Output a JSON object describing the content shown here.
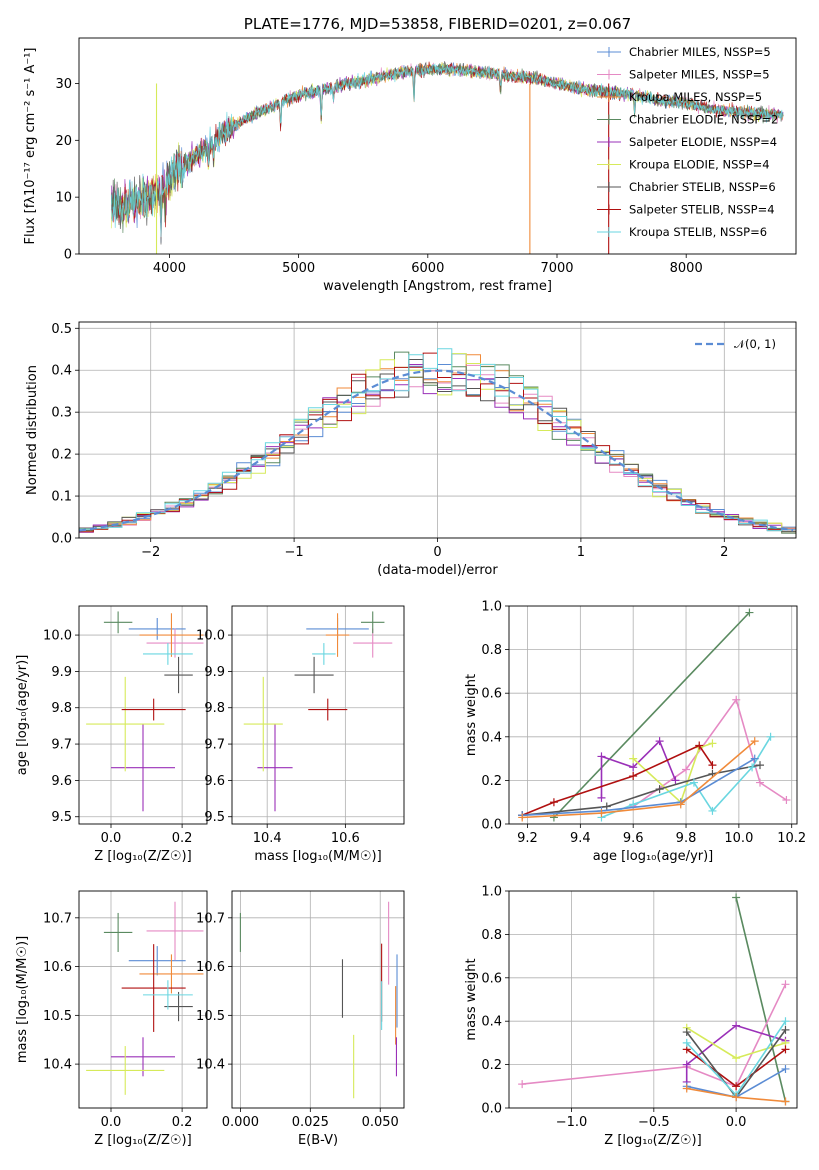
{
  "colors": {
    "Chabrier MILES": "#5b8cd4",
    "Salpeter MILES": "#e58ac4",
    "Kroupa MILES": "#f08a3a",
    "Chabrier ELODIE": "#5a8a60",
    "Salpeter ELODIE": "#9a30b8",
    "Kroupa ELODIE": "#d6ea5a",
    "Chabrier STELIB": "#555555",
    "Salpeter STELIB": "#b01010",
    "Kroupa STELIB": "#6ad6e0",
    "normal": "#5b8cd4",
    "grid": "#b0b0b0"
  },
  "chart_data": [
    {
      "id": "spectrum",
      "type": "line",
      "title": "PLATE=1776, MJD=53858, FIBERID=0201, z=0.067",
      "xlabel": "wavelength [Angstrom, rest frame]",
      "ylabel": "Flux [fλ10⁻¹⁷ erg cm⁻² s⁻¹ A⁻¹]",
      "xlim": [
        3300,
        8850
      ],
      "ylim": [
        0,
        38
      ],
      "xticks": [
        4000,
        5000,
        6000,
        7000,
        8000
      ],
      "yticks": [
        0,
        10,
        20,
        30
      ],
      "grid": false,
      "legend_position": "upper-right",
      "continuum": {
        "x": [
          3550,
          3700,
          3850,
          3950,
          4050,
          4200,
          4400,
          4600,
          4800,
          5000,
          5200,
          5400,
          5600,
          5800,
          6000,
          6200,
          6400,
          6600,
          6800,
          7000,
          7200,
          7400,
          7600,
          7800,
          8000,
          8200,
          8400,
          8700
        ],
        "y": [
          8,
          9,
          10,
          12,
          15,
          17,
          21,
          24,
          26,
          28,
          29,
          30,
          31,
          32,
          32.5,
          32.5,
          32,
          31.5,
          31,
          30,
          29,
          28.5,
          28,
          27,
          26.5,
          25.5,
          25,
          24.5
        ]
      },
      "series": [
        {
          "name": "Chabrier MILES, N_SSP=5"
        },
        {
          "name": "Salpeter MILES, N_SSP=5"
        },
        {
          "name": "Kroupa MILES, N_SSP=5"
        },
        {
          "name": "Chabrier ELODIE, N_SSP=2"
        },
        {
          "name": "Salpeter ELODIE, N_SSP=4"
        },
        {
          "name": "Kroupa ELODIE, N_SSP=4"
        },
        {
          "name": "Chabrier STELIB, N_SSP=6"
        },
        {
          "name": "Salpeter STELIB, N_SSP=4"
        },
        {
          "name": "Kroupa STELIB, N_SSP=6"
        }
      ]
    },
    {
      "id": "residuals",
      "type": "histogram",
      "xlabel": "(data-model)/error",
      "ylabel": "Normed distribution",
      "xlim": [
        -2.5,
        2.5
      ],
      "ylim": [
        0,
        0.515
      ],
      "xticks": [
        -2,
        -1,
        0,
        1,
        2
      ],
      "yticks": [
        0.0,
        0.1,
        0.2,
        0.3,
        0.4,
        0.5
      ],
      "grid": true,
      "legend_position": "upper-right",
      "legend": "𝒩(0, 1)",
      "bin_width": 0.1,
      "curve": "normal"
    },
    {
      "id": "age-vs-Z",
      "type": "errorbar",
      "xlabel": "Z [log₁₀(Z/Z☉)]",
      "ylabel": "age  [log₁₀(age/yr)]",
      "xlim": [
        -0.09,
        0.27
      ],
      "ylim": [
        9.48,
        10.08
      ],
      "xticks": [
        0.0,
        0.2
      ],
      "yticks": [
        9.5,
        9.6,
        9.7,
        9.8,
        9.9,
        10.0
      ],
      "grid": true,
      "points": [
        {
          "model": "Chabrier MILES",
          "x": 0.13,
          "y": 10.017,
          "xerr": 0.08,
          "yerr": 0.03
        },
        {
          "model": "Salpeter MILES",
          "x": 0.18,
          "y": 9.978,
          "xerr": 0.08,
          "yerr": 0.04
        },
        {
          "model": "Kroupa MILES",
          "x": 0.17,
          "y": 10.0,
          "xerr": 0.09,
          "yerr": 0.06
        },
        {
          "model": "Chabrier ELODIE",
          "x": 0.02,
          "y": 10.035,
          "xerr": 0.04,
          "yerr": 0.03
        },
        {
          "model": "Salpeter ELODIE",
          "x": 0.09,
          "y": 9.635,
          "xerr": 0.09,
          "yerr": 0.12
        },
        {
          "model": "Kroupa ELODIE",
          "x": 0.04,
          "y": 9.755,
          "xerr": 0.11,
          "yerr": 0.13
        },
        {
          "model": "Chabrier STELIB",
          "x": 0.19,
          "y": 9.89,
          "xerr": 0.04,
          "yerr": 0.05
        },
        {
          "model": "Salpeter STELIB",
          "x": 0.12,
          "y": 9.795,
          "xerr": 0.09,
          "yerr": 0.03
        },
        {
          "model": "Kroupa STELIB",
          "x": 0.16,
          "y": 9.948,
          "xerr": 0.07,
          "yerr": 0.03
        }
      ]
    },
    {
      "id": "age-vs-mass",
      "type": "errorbar",
      "xlabel": "mass [log₁₀(M/M☉)]",
      "ylabel": "",
      "xlim": [
        10.31,
        10.75
      ],
      "ylim": [
        9.48,
        10.08
      ],
      "xticks": [
        10.4,
        10.6
      ],
      "yticks": [
        9.5,
        9.6,
        9.7,
        9.8,
        9.9,
        10.0
      ],
      "grid": true,
      "points": [
        {
          "model": "Chabrier MILES",
          "x": 10.58,
          "y": 10.017,
          "xerr": 0.08,
          "yerr": 0.03
        },
        {
          "model": "Salpeter MILES",
          "x": 10.67,
          "y": 9.978,
          "xerr": 0.05,
          "yerr": 0.04
        },
        {
          "model": "Kroupa MILES",
          "x": 10.58,
          "y": 10.0,
          "xerr": 0.03,
          "yerr": 0.06
        },
        {
          "model": "Chabrier ELODIE",
          "x": 10.67,
          "y": 10.035,
          "xerr": 0.03,
          "yerr": 0.03
        },
        {
          "model": "Salpeter ELODIE",
          "x": 10.42,
          "y": 9.635,
          "xerr": 0.045,
          "yerr": 0.12
        },
        {
          "model": "Kroupa ELODIE",
          "x": 10.39,
          "y": 9.755,
          "xerr": 0.05,
          "yerr": 0.13
        },
        {
          "model": "Chabrier STELIB",
          "x": 10.52,
          "y": 9.89,
          "xerr": 0.05,
          "yerr": 0.05
        },
        {
          "model": "Salpeter STELIB",
          "x": 10.555,
          "y": 9.795,
          "xerr": 0.05,
          "yerr": 0.03
        },
        {
          "model": "Kroupa STELIB",
          "x": 10.545,
          "y": 9.948,
          "xerr": 0.03,
          "yerr": 0.03
        }
      ]
    },
    {
      "id": "mass-vs-Z",
      "type": "errorbar",
      "xlabel": "Z [log₁₀(Z/Z☉)]",
      "ylabel": "mass [log₁₀(M/M☉)]",
      "xlim": [
        -0.09,
        0.27
      ],
      "ylim": [
        10.31,
        10.755
      ],
      "xticks": [
        0.0,
        0.2
      ],
      "yticks": [
        10.4,
        10.5,
        10.6,
        10.7
      ],
      "grid": true,
      "points": [
        {
          "model": "Chabrier MILES",
          "x": 0.13,
          "y": 10.612,
          "xerr": 0.08,
          "yerr": 0.03
        },
        {
          "model": "Salpeter MILES",
          "x": 0.18,
          "y": 10.673,
          "xerr": 0.08,
          "yerr": 0.06
        },
        {
          "model": "Kroupa MILES",
          "x": 0.17,
          "y": 10.585,
          "xerr": 0.09,
          "yerr": 0.04
        },
        {
          "model": "Chabrier ELODIE",
          "x": 0.02,
          "y": 10.67,
          "xerr": 0.04,
          "yerr": 0.04
        },
        {
          "model": "Salpeter ELODIE",
          "x": 0.09,
          "y": 10.415,
          "xerr": 0.09,
          "yerr": 0.04
        },
        {
          "model": "Kroupa ELODIE",
          "x": 0.04,
          "y": 10.387,
          "xerr": 0.11,
          "yerr": 0.05
        },
        {
          "model": "Chabrier STELIB",
          "x": 0.19,
          "y": 10.518,
          "xerr": 0.04,
          "yerr": 0.03
        },
        {
          "model": "Salpeter STELIB",
          "x": 0.12,
          "y": 10.556,
          "xerr": 0.09,
          "yerr": 0.09
        },
        {
          "model": "Kroupa STELIB",
          "x": 0.16,
          "y": 10.542,
          "xerr": 0.07,
          "yerr": 0.03
        }
      ]
    },
    {
      "id": "mass-vs-EBV",
      "type": "errorbar",
      "xlabel": "E(B-V)",
      "ylabel": "",
      "xlim": [
        -0.003,
        0.0585
      ],
      "ylim": [
        10.31,
        10.755
      ],
      "xticks": [
        0.0,
        0.025,
        0.05
      ],
      "xtick_labels": [
        "0.000",
        "0.025",
        "0.050"
      ],
      "yticks": [
        10.4,
        10.5,
        10.6,
        10.7
      ],
      "grid": true,
      "points": [
        {
          "model": "Chabrier MILES",
          "x": 0.056,
          "y": 10.55,
          "xerr": 0,
          "yerr": 0.075
        },
        {
          "model": "Salpeter MILES",
          "x": 0.053,
          "y": 10.648,
          "xerr": 0,
          "yerr": 0.085
        },
        {
          "model": "Kroupa MILES",
          "x": 0.0555,
          "y": 10.5,
          "xerr": 0,
          "yerr": 0.06
        },
        {
          "model": "Chabrier ELODIE",
          "x": 0.0,
          "y": 10.67,
          "xerr": 0,
          "yerr": 0.04
        },
        {
          "model": "Salpeter ELODIE",
          "x": 0.0558,
          "y": 10.415,
          "xerr": 0,
          "yerr": 0.04
        },
        {
          "model": "Kroupa ELODIE",
          "x": 0.0405,
          "y": 10.395,
          "xerr": 0,
          "yerr": 0.065
        },
        {
          "model": "Chabrier STELIB",
          "x": 0.0365,
          "y": 10.555,
          "xerr": 0,
          "yerr": 0.06
        },
        {
          "model": "Salpeter STELIB",
          "x": 0.0505,
          "y": 10.567,
          "xerr": 0,
          "yerr": 0.08
        },
        {
          "model": "Kroupa STELIB",
          "x": 0.0505,
          "y": 10.52,
          "xerr": 0,
          "yerr": 0.05
        }
      ]
    },
    {
      "id": "weight-vs-age",
      "type": "line",
      "xlabel": "age  [log₁₀(age/yr)]",
      "ylabel": "mass weight",
      "xlim": [
        9.13,
        10.22
      ],
      "ylim": [
        0,
        1.0
      ],
      "xticks": [
        9.2,
        9.4,
        9.6,
        9.8,
        10.0,
        10.2
      ],
      "yticks": [
        0.0,
        0.2,
        0.4,
        0.6,
        0.8,
        1.0
      ],
      "grid": true,
      "series": [
        {
          "model": "Chabrier ELODIE",
          "x": [
            9.3,
            10.04
          ],
          "y": [
            0.03,
            0.97
          ]
        },
        {
          "model": "Salpeter MILES",
          "x": [
            9.6,
            9.8,
            9.99,
            10.08,
            10.18
          ],
          "y": [
            0.08,
            0.25,
            0.57,
            0.19,
            0.11
          ]
        },
        {
          "model": "Salpeter ELODIE",
          "x": [
            9.48,
            9.48,
            9.6,
            9.7,
            9.76
          ],
          "y": [
            0.12,
            0.31,
            0.26,
            0.38,
            0.2
          ]
        },
        {
          "model": "Kroupa ELODIE",
          "x": [
            9.6,
            9.78,
            9.85,
            9.9
          ],
          "y": [
            0.3,
            0.1,
            0.35,
            0.37
          ]
        },
        {
          "model": "Salpeter STELIB",
          "x": [
            9.18,
            9.3,
            9.6,
            9.85,
            9.9
          ],
          "y": [
            0.04,
            0.1,
            0.22,
            0.36,
            0.27
          ]
        },
        {
          "model": "Chabrier STELIB",
          "x": [
            9.18,
            9.5,
            9.7,
            9.9,
            10.08
          ],
          "y": [
            0.04,
            0.08,
            0.16,
            0.23,
            0.27
          ]
        },
        {
          "model": "Kroupa STELIB",
          "x": [
            9.48,
            9.6,
            9.83,
            9.9,
            10.05,
            10.12
          ],
          "y": [
            0.03,
            0.09,
            0.19,
            0.06,
            0.26,
            0.4
          ]
        },
        {
          "model": "Chabrier MILES",
          "x": [
            9.18,
            9.48,
            9.78,
            10.06
          ],
          "y": [
            0.04,
            0.06,
            0.1,
            0.3
          ]
        },
        {
          "model": "Kroupa MILES",
          "x": [
            9.18,
            9.48,
            9.78,
            10.06
          ],
          "y": [
            0.03,
            0.05,
            0.09,
            0.38
          ]
        }
      ]
    },
    {
      "id": "weight-vs-Z",
      "type": "line",
      "xlabel": "Z [log₁₀(Z/Z☉)]",
      "ylabel": "mass weight",
      "xlim": [
        -1.38,
        0.37
      ],
      "ylim": [
        0,
        1.0
      ],
      "xticks": [
        -1.0,
        -0.5,
        0.0
      ],
      "yticks": [
        0.0,
        0.2,
        0.4,
        0.6,
        0.8,
        1.0
      ],
      "grid": true,
      "series": [
        {
          "model": "Chabrier ELODIE",
          "x": [
            0.0,
            0.3
          ],
          "y": [
            0.97,
            0.03
          ]
        },
        {
          "model": "Salpeter MILES",
          "x": [
            -1.3,
            -0.3,
            0.0,
            0.3
          ],
          "y": [
            0.11,
            0.19,
            0.1,
            0.57
          ]
        },
        {
          "model": "Salpeter ELODIE",
          "x": [
            -0.3,
            -0.3,
            0.0,
            0.3
          ],
          "y": [
            0.12,
            0.2,
            0.38,
            0.31
          ]
        },
        {
          "model": "Kroupa ELODIE",
          "x": [
            -0.3,
            0.0,
            0.3
          ],
          "y": [
            0.37,
            0.23,
            0.3
          ]
        },
        {
          "model": "Salpeter STELIB",
          "x": [
            -0.3,
            0.0,
            0.3
          ],
          "y": [
            0.27,
            0.1,
            0.27
          ]
        },
        {
          "model": "Chabrier STELIB",
          "x": [
            -0.3,
            0.0,
            0.3
          ],
          "y": [
            0.35,
            0.05,
            0.36
          ]
        },
        {
          "model": "Kroupa STELIB",
          "x": [
            -0.3,
            0.0,
            0.3
          ],
          "y": [
            0.3,
            0.06,
            0.4
          ]
        },
        {
          "model": "Chabrier MILES",
          "x": [
            -0.3,
            0.0,
            0.3
          ],
          "y": [
            0.1,
            0.05,
            0.18
          ]
        },
        {
          "model": "Kroupa MILES",
          "x": [
            -0.3,
            0.0,
            0.3
          ],
          "y": [
            0.09,
            0.05,
            0.03
          ]
        }
      ]
    }
  ]
}
